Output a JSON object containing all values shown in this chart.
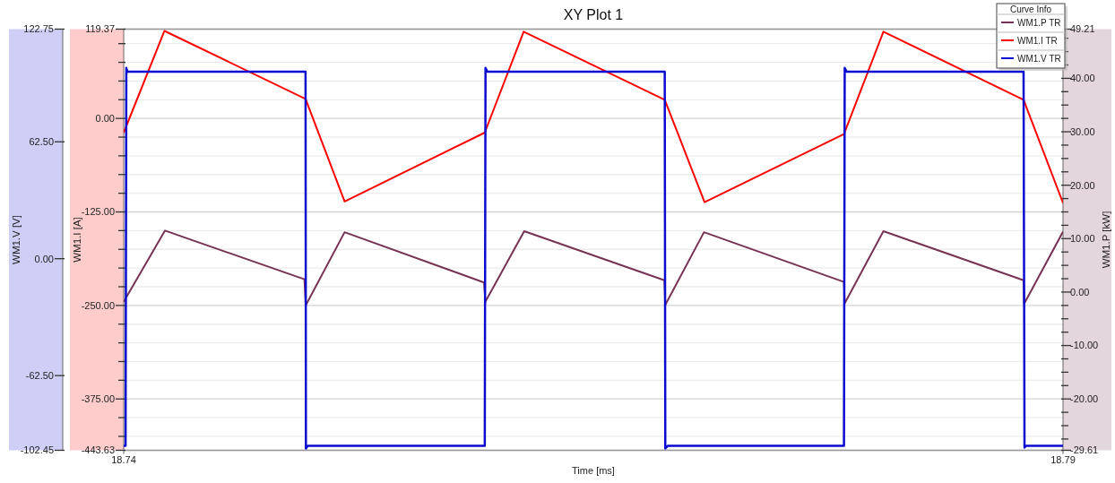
{
  "chart_data": {
    "type": "line",
    "title": "XY Plot 1",
    "xlabel": "Time [ms]",
    "ylabel": "WM1.I [A]",
    "y2label": "WM1.P [kW]",
    "y3label": "WM1.V [V]",
    "legend_title": "Curve Info",
    "legend": "top right",
    "grid": "y",
    "line_style": "solid",
    "marker": "none",
    "xlim": [
      18.74,
      18.79
    ],
    "xticks": [
      18.74,
      18.79
    ],
    "ylim": [
      -443.63,
      119.37
    ],
    "yticks": [
      {
        "value": 119.37,
        "label": "119.37"
      },
      {
        "value": 100,
        "label": null
      },
      {
        "value": 75,
        "label": null
      },
      {
        "value": 50,
        "label": null
      },
      {
        "value": 25,
        "label": null
      },
      {
        "value": 0,
        "label": "0.00"
      },
      {
        "value": -25,
        "label": null
      },
      {
        "value": -50,
        "label": null
      },
      {
        "value": -75,
        "label": null
      },
      {
        "value": -100,
        "label": null
      },
      {
        "value": -125,
        "label": "-125.00"
      },
      {
        "value": -150,
        "label": null
      },
      {
        "value": -175,
        "label": null
      },
      {
        "value": -200,
        "label": null
      },
      {
        "value": -225,
        "label": null
      },
      {
        "value": -250,
        "label": "-250.00"
      },
      {
        "value": -275,
        "label": null
      },
      {
        "value": -300,
        "label": null
      },
      {
        "value": -325,
        "label": null
      },
      {
        "value": -350,
        "label": null
      },
      {
        "value": -375,
        "label": "-375.00"
      },
      {
        "value": -400,
        "label": null
      },
      {
        "value": -425,
        "label": null
      },
      {
        "value": -443.63,
        "label": "-443.63"
      }
    ],
    "y2lim": [
      -29.61,
      49.21
    ],
    "y2ticks": [
      {
        "value": 49.21,
        "label": "49.21"
      },
      {
        "value": 47.5,
        "label": null
      },
      {
        "value": 45,
        "label": null
      },
      {
        "value": 42.5,
        "label": null
      },
      {
        "value": 40,
        "label": "40.00"
      },
      {
        "value": 37.5,
        "label": null
      },
      {
        "value": 35,
        "label": null
      },
      {
        "value": 32.5,
        "label": null
      },
      {
        "value": 30,
        "label": "30.00"
      },
      {
        "value": 27.5,
        "label": null
      },
      {
        "value": 25,
        "label": null
      },
      {
        "value": 22.5,
        "label": null
      },
      {
        "value": 20,
        "label": "20.00"
      },
      {
        "value": 17.5,
        "label": null
      },
      {
        "value": 15,
        "label": null
      },
      {
        "value": 12.5,
        "label": null
      },
      {
        "value": 10,
        "label": "10.00"
      },
      {
        "value": 7.5,
        "label": null
      },
      {
        "value": 5,
        "label": null
      },
      {
        "value": 2.5,
        "label": null
      },
      {
        "value": 0,
        "label": "0.00"
      },
      {
        "value": -2.5,
        "label": null
      },
      {
        "value": -5,
        "label": null
      },
      {
        "value": -7.5,
        "label": null
      },
      {
        "value": -10,
        "label": "-10.00"
      },
      {
        "value": -12.5,
        "label": null
      },
      {
        "value": -15,
        "label": null
      },
      {
        "value": -17.5,
        "label": null
      },
      {
        "value": -20,
        "label": "-20.00"
      },
      {
        "value": -22.5,
        "label": null
      },
      {
        "value": -25,
        "label": null
      },
      {
        "value": -27.5,
        "label": null
      },
      {
        "value": -29.61,
        "label": "-29.61"
      }
    ],
    "y3lim": [
      -102.45,
      122.75
    ],
    "y3ticks": [
      {
        "value": 122.75,
        "label": "122.75"
      },
      {
        "value": 62.5,
        "label": "62.50"
      },
      {
        "value": 0,
        "label": "0.00"
      },
      {
        "value": -62.5,
        "label": "-62.50"
      },
      {
        "value": -102.45,
        "label": "-102.45"
      }
    ],
    "series": [
      {
        "name": "WM1.P TR",
        "color": "#773355",
        "axis": "y2",
        "x": [
          18.74,
          18.7422,
          18.74962,
          18.74969,
          18.75176,
          18.75918,
          18.75925,
          18.76132,
          18.76878,
          18.76883,
          18.77089,
          18.77834,
          18.77838,
          18.78044,
          18.7879,
          18.78793,
          18.79
        ],
        "values": [
          -1.8,
          11.5,
          2.4,
          -2.5,
          11.2,
          1.8,
          -1.8,
          11.4,
          2.2,
          -2.4,
          11.2,
          1.9,
          -2.1,
          11.4,
          2.2,
          -2.2,
          11.3
        ]
      },
      {
        "name": "WM1.I TR",
        "color": "#ff0000",
        "axis": "y",
        "x": [
          18.74,
          18.74217,
          18.74968,
          18.75176,
          18.75922,
          18.76129,
          18.7688,
          18.77092,
          18.77834,
          18.78044,
          18.7879,
          18.79
        ],
        "values": [
          -19,
          117,
          26,
          -111,
          -19,
          116,
          25,
          -112,
          -21,
          116,
          25,
          -113
        ]
      },
      {
        "name": "WM1.V TR",
        "color": "#0a0ad0",
        "axis": "y3",
        "x": [
          18.74,
          18.7401,
          18.74014,
          18.74019,
          18.74968,
          18.7497,
          18.7498,
          18.75922,
          18.75926,
          18.75936,
          18.7688,
          18.76883,
          18.76897,
          18.77834,
          18.77838,
          18.77848,
          18.7879,
          18.78795,
          18.78804,
          18.79
        ],
        "values": [
          -100,
          -100,
          102,
          100,
          100,
          -101.5,
          -100,
          -100,
          102,
          100,
          100,
          -101.5,
          -100,
          -100,
          102,
          100,
          100,
          -101,
          -100,
          -100
        ]
      }
    ]
  }
}
